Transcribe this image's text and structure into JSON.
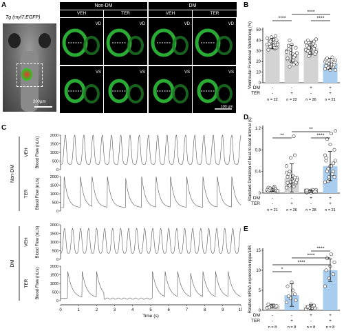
{
  "panels": {
    "a": {
      "label": "A",
      "caption": "Tg (myl7:EGFP)",
      "scalebar_fish": "200μm",
      "scalebar_heart": "100 μm",
      "groups": [
        "Non-DM",
        "DM"
      ],
      "conditions": [
        "VEH",
        "TER",
        "VEH",
        "TER"
      ],
      "rows": [
        "VD",
        "VS"
      ]
    },
    "b": {
      "label": "B",
      "ylabel": "Ventricular Fractional Shortening (%)"
    },
    "c": {
      "label": "C",
      "y_axis_label": "Blood Flow (nL/s)",
      "xlabel": "Time (s)",
      "traces": [
        {
          "group": "Non-DM",
          "cond": "VEH"
        },
        {
          "group": "",
          "cond": "TER"
        },
        {
          "group": "DM",
          "cond": "VEH"
        },
        {
          "group": "",
          "cond": "TER"
        }
      ],
      "yticks": [
        "2000",
        "1500",
        "1000",
        "500",
        "0"
      ],
      "xticks": [
        "0",
        "1",
        "2",
        "3",
        "4",
        "5",
        "6",
        "7",
        "8",
        "9",
        "10"
      ]
    },
    "d": {
      "label": "D",
      "ylabel": "Standard Deviation of beat-to-beat interval (s)"
    },
    "e": {
      "label": "E",
      "ylabel": "Relative mRNA expression nppa/18S"
    }
  },
  "chart_data": [
    {
      "panel": "B",
      "type": "bar",
      "ylabel": "Ventricular Fractional Shortening (%)",
      "yticks": [
        0,
        10,
        20,
        30,
        40,
        50
      ],
      "ylim": [
        0,
        52
      ],
      "row_labels": [
        "DM",
        "TER"
      ],
      "conditions": [
        [
          "-",
          "-"
        ],
        [
          "-",
          "+"
        ],
        [
          "+",
          "-"
        ],
        [
          "+",
          "+"
        ]
      ],
      "n": [
        "n = 22",
        "n = 22",
        "n = 26",
        "n = 21"
      ],
      "values": [
        37,
        27.5,
        33,
        18
      ],
      "errors": [
        5,
        8,
        6,
        5
      ],
      "colors": [
        "#d3d3d3",
        "#d3d3d3",
        "#d3d3d3",
        "#a9cdee"
      ],
      "significance": [
        {
          "from": 0,
          "to": 1,
          "label": "****",
          "level": 0
        },
        {
          "from": 2,
          "to": 3,
          "label": "****",
          "level": 0
        },
        {
          "from": 1,
          "to": 3,
          "label": "****",
          "level": 1
        }
      ],
      "points": [
        [
          42,
          40,
          38,
          36,
          35,
          33,
          39,
          41,
          37,
          34,
          32,
          36,
          43,
          44,
          31,
          38,
          40,
          37,
          35,
          36,
          39,
          33
        ],
        [
          30,
          28,
          25,
          22,
          20,
          33,
          35,
          27,
          18,
          15,
          24,
          29,
          31,
          26,
          23,
          36,
          19,
          32,
          21,
          28,
          40,
          17
        ],
        [
          38,
          36,
          34,
          30,
          28,
          35,
          40,
          32,
          29,
          33,
          37,
          31,
          26,
          39,
          35,
          36,
          27,
          30,
          34,
          41,
          25,
          33,
          38,
          28,
          32,
          35
        ],
        [
          20,
          18,
          15,
          22,
          12,
          17,
          19,
          16,
          21,
          14,
          24,
          13,
          18,
          20,
          16,
          15,
          19,
          23,
          17,
          12,
          14
        ]
      ]
    },
    {
      "panel": "D",
      "type": "bar",
      "ylabel": "Standard Deviation of beat-to-beat interval (s)",
      "yticks": [
        0,
        0.4,
        0.8,
        1.2
      ],
      "ylim": [
        0,
        1.25
      ],
      "row_labels": [
        "DM",
        "TER"
      ],
      "conditions": [
        [
          "-",
          "-"
        ],
        [
          "-",
          "+"
        ],
        [
          "+",
          "-"
        ],
        [
          "+",
          "+"
        ]
      ],
      "n": [
        "n = 21",
        "n = 26",
        "n = 28",
        "n = 21"
      ],
      "values": [
        0.06,
        0.28,
        0.03,
        0.5
      ],
      "errors": [
        0.03,
        0.26,
        0.02,
        0.27
      ],
      "colors": [
        "#d3d3d3",
        "#d3d3d3",
        "#d3d3d3",
        "#a9cdee"
      ],
      "significance": [
        {
          "from": 0,
          "to": 1,
          "label": "**",
          "level": 0
        },
        {
          "from": 2,
          "to": 3,
          "label": "****",
          "level": 0
        },
        {
          "from": 1,
          "to": 3,
          "label": "**",
          "level": 1
        }
      ],
      "points": [
        [
          0.05,
          0.08,
          0.03,
          0.1,
          0.06,
          0.04,
          0.07,
          0.09,
          0.02,
          0.05,
          0.12,
          0.06,
          0.04,
          0.08,
          0.03,
          0.07,
          0.05,
          0.06,
          0.1,
          0.04,
          0.09
        ],
        [
          0.1,
          0.2,
          0.25,
          0.3,
          0.15,
          0.18,
          0.35,
          0.22,
          0.28,
          0.4,
          0.12,
          0.5,
          0.65,
          0.7,
          0.3,
          0.26,
          0.2,
          0.17,
          0.32,
          0.24,
          0.14,
          1.05,
          0.38,
          0.21,
          0.29,
          0.19
        ],
        [
          0.02,
          0.03,
          0.04,
          0.01,
          0.05,
          0.03,
          0.02,
          0.04,
          0.06,
          0.03,
          0.02,
          0.05,
          0.03,
          0.04,
          0.02,
          0.01,
          0.03,
          0.05,
          0.04,
          0.02,
          0.03,
          0.06,
          0.04,
          0.03,
          0.02,
          0.05,
          0.01,
          0.03
        ],
        [
          0.2,
          0.3,
          0.4,
          0.6,
          0.5,
          0.8,
          1.0,
          1.1,
          1.15,
          0.45,
          0.35,
          0.7,
          0.25,
          0.55,
          0.65,
          0.9,
          0.3,
          0.4,
          0.5,
          0.6,
          0.22
        ]
      ]
    },
    {
      "panel": "E",
      "type": "bar",
      "ylabel": "Relative mRNA expression nppa/18S",
      "yticks": [
        0,
        5,
        10,
        15
      ],
      "ylim": [
        0,
        15.5
      ],
      "row_labels": [
        "DM",
        "TER"
      ],
      "conditions": [
        [
          "-",
          "-"
        ],
        [
          "-",
          "+"
        ],
        [
          "+",
          "-"
        ],
        [
          "+",
          "+"
        ]
      ],
      "n": [
        "n = 8",
        "n = 8",
        "n = 8",
        "n = 8"
      ],
      "values": [
        1,
        3.8,
        0.8,
        10
      ],
      "errors": [
        0.4,
        2.8,
        0.6,
        2.8
      ],
      "colors": [
        "#d3d3d3",
        "#a9cdee",
        "#d3d3d3",
        "#a9cdee"
      ],
      "significance": [
        {
          "from": 0,
          "to": 1,
          "label": "*",
          "level": 0
        },
        {
          "from": 0,
          "to": 3,
          "label": "****",
          "level": 1
        },
        {
          "from": 1,
          "to": 3,
          "label": "****",
          "level": 2
        },
        {
          "from": 2,
          "to": 3,
          "label": "****",
          "level": 3
        }
      ],
      "points": [
        [
          0.6,
          1.2,
          0.8,
          1.5,
          0.9,
          1.1,
          0.7,
          1.3
        ],
        [
          2,
          3,
          4,
          6,
          7,
          2.5,
          3.5,
          5
        ],
        [
          0.3,
          0.6,
          1.2,
          0.8,
          1.5,
          0.5,
          0.9,
          0.4
        ],
        [
          6,
          8,
          9,
          10,
          11,
          12,
          13,
          14
        ]
      ]
    }
  ]
}
